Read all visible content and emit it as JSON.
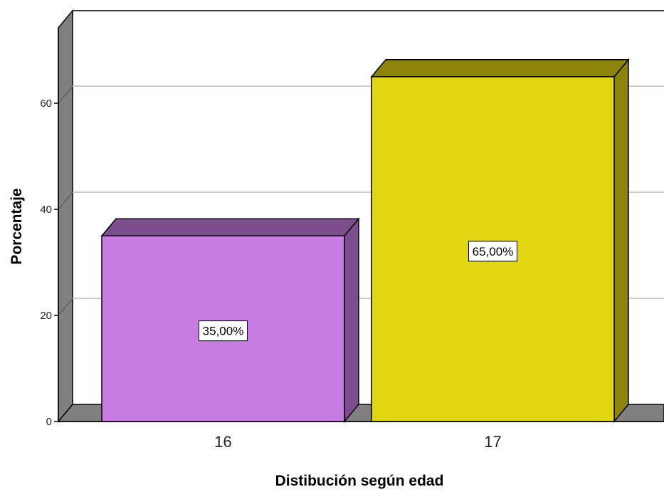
{
  "chart_data": {
    "type": "bar",
    "style": "3d",
    "categories": [
      "16",
      "17"
    ],
    "values": [
      35,
      65
    ],
    "data_labels": [
      "35,00%",
      "65,00%"
    ],
    "xlabel": "Distibución según edad",
    "ylabel": "Porcentaje",
    "ylim": [
      0,
      70
    ],
    "yticks": [
      0,
      20,
      40,
      60
    ],
    "grid": true,
    "legend": "none",
    "colors": {
      "bar_16_front": "#c77ce4",
      "bar_16_top": "#7d4e8e",
      "bar_16_side": "#7d4e8e",
      "bar_17_front": "#e2d610",
      "bar_17_top": "#8c830b",
      "bar_17_side": "#8c830b",
      "wall": "#808080",
      "gridline": "#cccccc"
    }
  }
}
